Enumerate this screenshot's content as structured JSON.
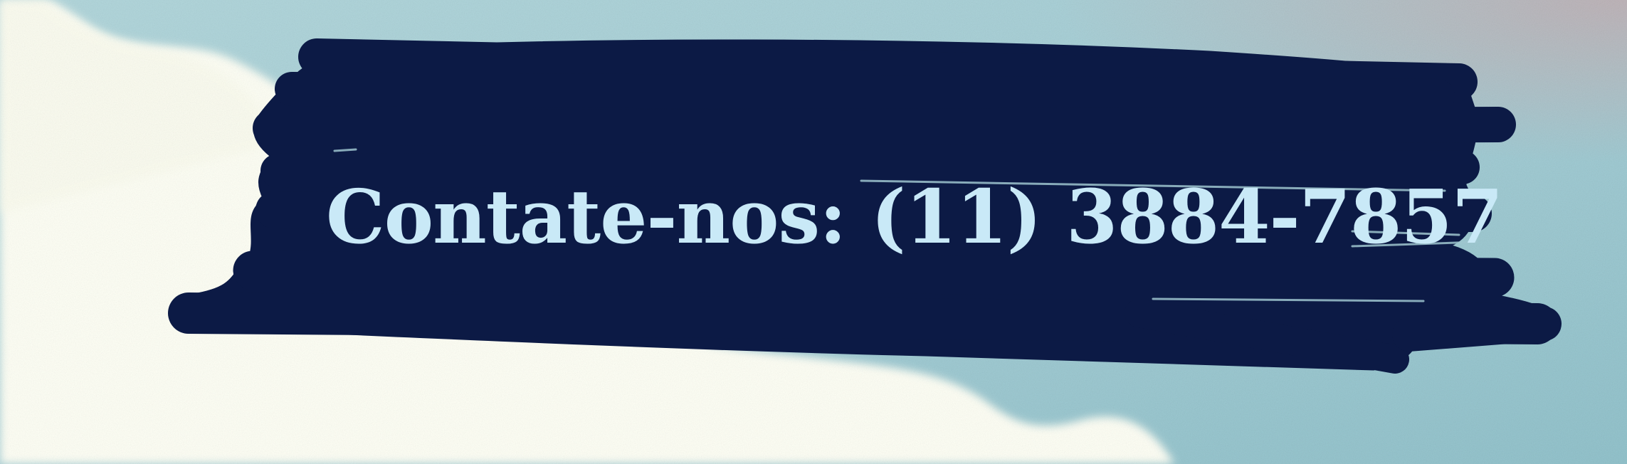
{
  "contact_text": "Contate-nos: (11) 3884-7857",
  "colors": {
    "sky": "#a7cfd6",
    "sky_deep": "#93c3cc",
    "cloud": "#fefff5",
    "brush": "#0c1a45",
    "text": "#c9e9f7",
    "corner_tint": "#c3b0b4"
  }
}
